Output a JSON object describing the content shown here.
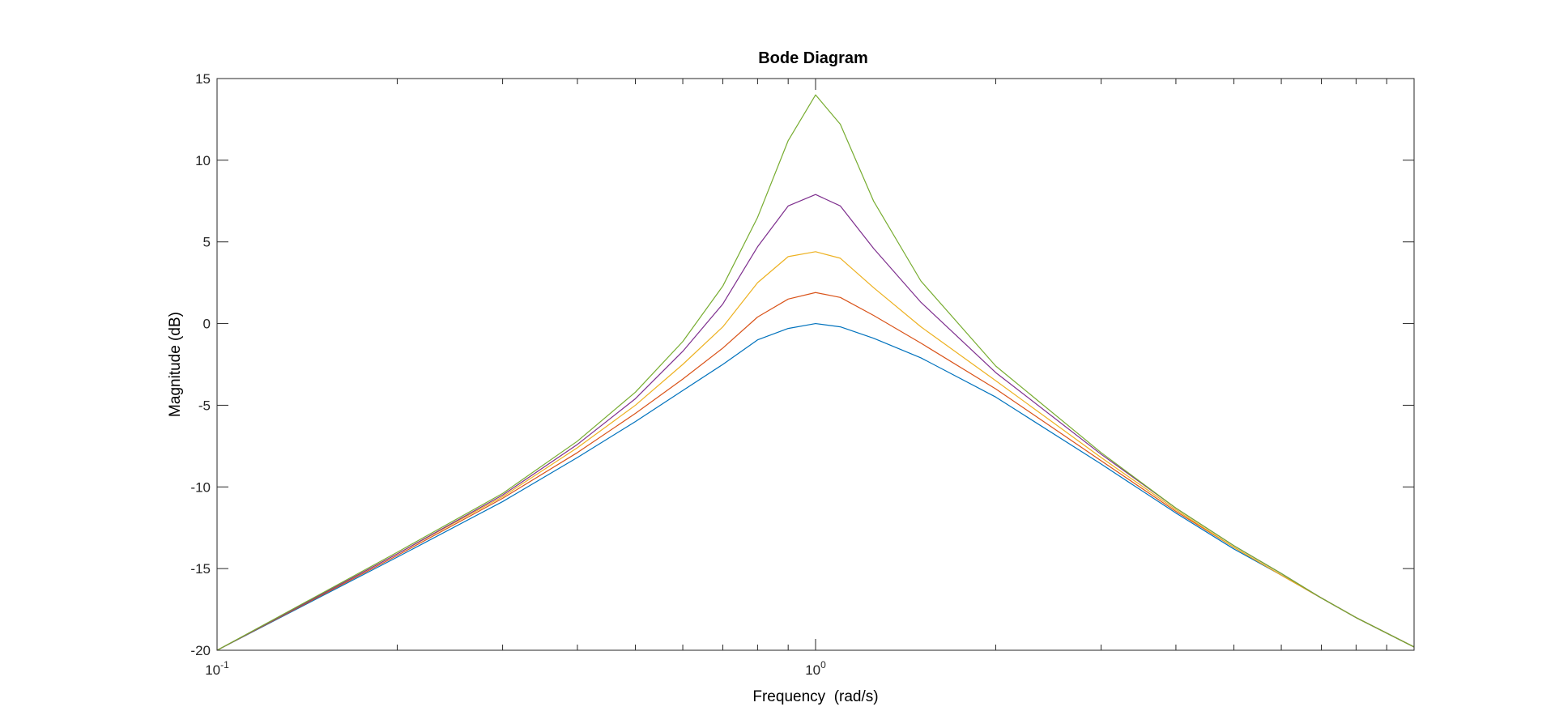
{
  "chart_data": {
    "type": "line",
    "title": "Bode Diagram",
    "xlabel": "Frequency  (rad/s)",
    "ylabel": "Magnitude (dB)",
    "xscale": "log",
    "xlim": [
      0.1,
      10
    ],
    "ylim": [
      -20,
      15
    ],
    "grid": false,
    "legend": "none",
    "y_ticks": [
      15,
      10,
      5,
      0,
      -5,
      -10,
      -15,
      -20
    ],
    "y_tick_labels": [
      "15",
      "10",
      "5",
      "0",
      "-5",
      "-10",
      "-15",
      "-20"
    ],
    "x_major_ticks": [
      {
        "value": 0.1,
        "base": "10",
        "exp": "-1"
      },
      {
        "value": 1,
        "base": "10",
        "exp": "0"
      }
    ],
    "x_minor_ticks": [
      0.2,
      0.3,
      0.4,
      0.5,
      0.6,
      0.7,
      0.8,
      0.9,
      2,
      3,
      4,
      5,
      6,
      7,
      8,
      9
    ],
    "x": [
      0.1,
      0.2,
      0.3,
      0.4,
      0.5,
      0.6,
      0.7,
      0.8,
      0.9,
      1.0,
      1.1,
      1.25,
      1.5,
      2,
      3,
      4,
      5,
      6,
      7,
      8,
      10
    ],
    "series": [
      {
        "color": "#0072BD",
        "values": [
          -20.0,
          -14.3,
          -10.9,
          -8.2,
          -6.0,
          -4.1,
          -2.5,
          -1.0,
          -0.3,
          0.0,
          -0.2,
          -0.9,
          -2.1,
          -4.5,
          -8.6,
          -11.6,
          -13.8,
          -15.4,
          -16.8,
          -18.0,
          -19.8
        ]
      },
      {
        "color": "#D95319",
        "values": [
          -20.0,
          -14.2,
          -10.7,
          -7.9,
          -5.5,
          -3.4,
          -1.5,
          0.4,
          1.5,
          1.9,
          1.6,
          0.5,
          -1.2,
          -4.0,
          -8.4,
          -11.5,
          -13.7,
          -15.4,
          -16.8,
          -18.0,
          -19.8
        ]
      },
      {
        "color": "#EDB120",
        "values": [
          -20.0,
          -14.1,
          -10.6,
          -7.6,
          -5.0,
          -2.5,
          -0.2,
          2.5,
          4.1,
          4.4,
          4.0,
          2.2,
          -0.2,
          -3.5,
          -8.2,
          -11.4,
          -13.7,
          -15.4,
          -16.8,
          -18.0,
          -19.8
        ]
      },
      {
        "color": "#7E2F8E",
        "values": [
          -20.0,
          -14.1,
          -10.5,
          -7.4,
          -4.6,
          -1.7,
          1.2,
          4.7,
          7.2,
          7.9,
          7.2,
          4.6,
          1.3,
          -3.0,
          -8.0,
          -11.3,
          -13.6,
          -15.3,
          -16.8,
          -18.0,
          -19.8
        ]
      },
      {
        "color": "#77AC30",
        "values": [
          -20.0,
          -14.0,
          -10.4,
          -7.2,
          -4.2,
          -1.1,
          2.3,
          6.5,
          11.2,
          14.0,
          12.2,
          7.5,
          2.6,
          -2.6,
          -7.9,
          -11.3,
          -13.6,
          -15.3,
          -16.8,
          -18.0,
          -19.8
        ]
      }
    ]
  }
}
